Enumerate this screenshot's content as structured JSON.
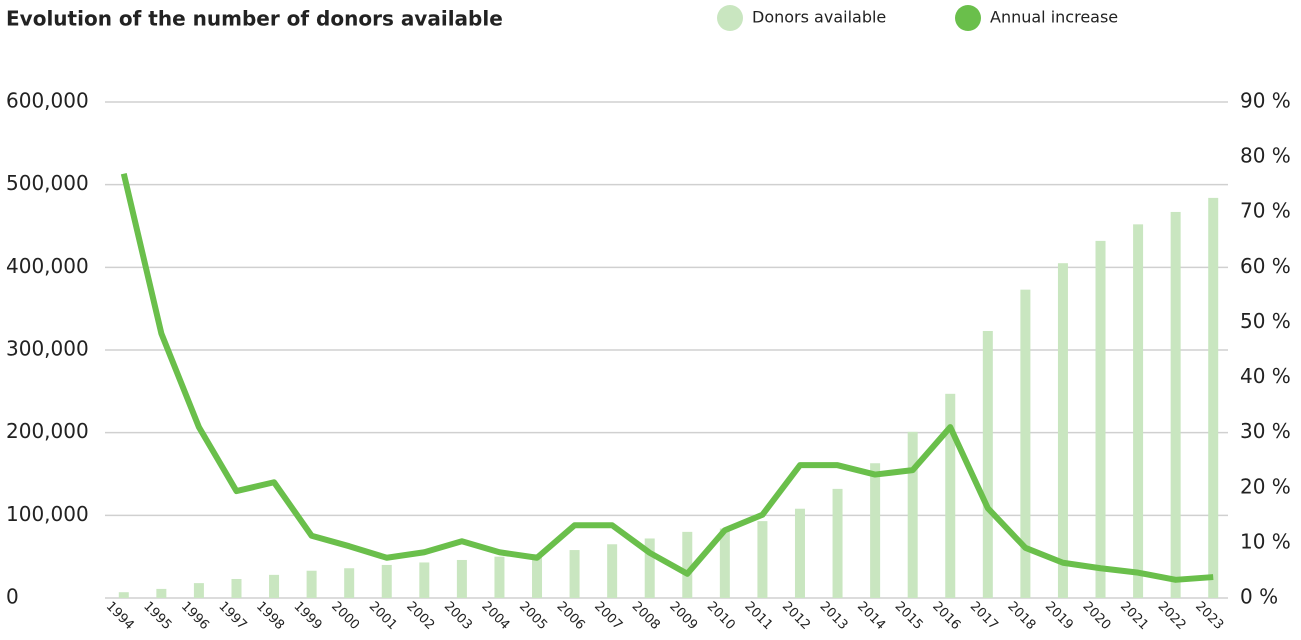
{
  "chart_data": {
    "type": "bar-line",
    "title": "Evolution of the number of donors available",
    "categories": [
      "1994",
      "1995",
      "1996",
      "1997",
      "1998",
      "1999",
      "2000",
      "2001",
      "2002",
      "2003",
      "2004",
      "2005",
      "2006",
      "2007",
      "2008",
      "2009",
      "2010",
      "2011",
      "2012",
      "2013",
      "2014",
      "2015",
      "2016",
      "2017",
      "2018",
      "2019",
      "2020",
      "2021",
      "2022",
      "2023"
    ],
    "series": [
      {
        "name": "Donors available",
        "color": "#c9e6c0",
        "type": "bar",
        "values": [
          7000,
          11000,
          18000,
          23000,
          28000,
          33000,
          36000,
          40000,
          43000,
          46000,
          50000,
          53000,
          58000,
          65000,
          72000,
          80000,
          84000,
          93000,
          108000,
          132000,
          163000,
          201000,
          247000,
          323000,
          373000,
          405000,
          432000,
          452000,
          467000,
          484000
        ]
      },
      {
        "name": "Annual increase",
        "color": "#6abf4b",
        "type": "line",
        "axis": "y2",
        "values": [
          77,
          48,
          31,
          19.4,
          21,
          11.3,
          9.4,
          7.3,
          8.3,
          10.3,
          8.3,
          7.3,
          13.2,
          13.2,
          8.2,
          4.4,
          12.3,
          15.1,
          24.1,
          24.1,
          22.4,
          23.2,
          31,
          16.3,
          9.1,
          6.4,
          5.4,
          4.6,
          3.3,
          3.8
        ]
      }
    ],
    "ylim": [
      0,
      600000
    ],
    "yticks": [
      0,
      {
        "value": 100000,
        "label": "100,000"
      },
      {
        "value": 200000,
        "label": "200,000"
      },
      {
        "value": 300000,
        "label": "300,000"
      },
      {
        "value": 400000,
        "label": "400,000"
      },
      {
        "value": 500000,
        "label": "500,000"
      },
      {
        "value": 600000,
        "label": "600,000"
      }
    ],
    "y2lim": [
      0,
      90
    ],
    "y2ticks": [
      {
        "value": 0,
        "label": "0 %"
      },
      {
        "value": 10,
        "label": "10 %"
      },
      {
        "value": 20,
        "label": "20 %"
      },
      {
        "value": 30,
        "label": "30 %"
      },
      {
        "value": 40,
        "label": "40 %"
      },
      {
        "value": 50,
        "label": "50 %"
      },
      {
        "value": 60,
        "label": "60 %"
      },
      {
        "value": 70,
        "label": "70 %"
      },
      {
        "value": 80,
        "label": "80 %"
      },
      {
        "value": 90,
        "label": "90 %"
      }
    ],
    "grid": true
  }
}
